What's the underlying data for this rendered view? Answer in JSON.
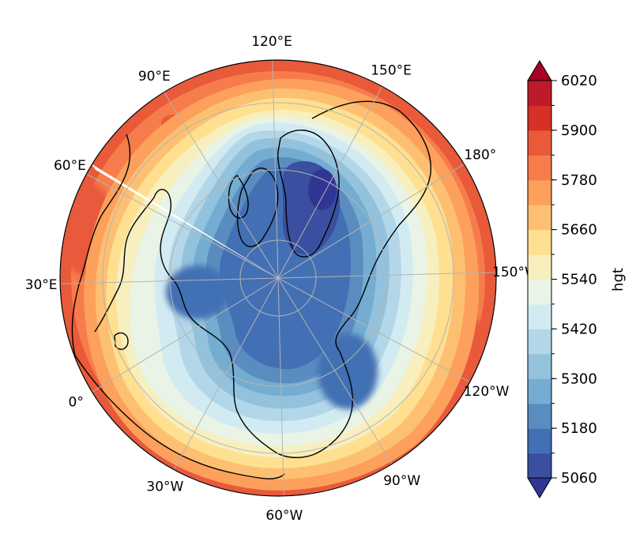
{
  "map": {
    "projection": "north-polar-stereographic",
    "field_label": "hgt",
    "colormap": "RdYlBu_r",
    "gridlines": true,
    "longitude_labels": [
      {
        "text": "0°",
        "lon": 0
      },
      {
        "text": "30°E",
        "lon": 30
      },
      {
        "text": "60°E",
        "lon": 60
      },
      {
        "text": "90°E",
        "lon": 90
      },
      {
        "text": "120°E",
        "lon": 120
      },
      {
        "text": "150°E",
        "lon": 150
      },
      {
        "text": "180°",
        "lon": 180
      },
      {
        "text": "150°W",
        "lon": -150
      },
      {
        "text": "120°W",
        "lon": -120
      },
      {
        "text": "90°W",
        "lon": -90
      },
      {
        "text": "60°W",
        "lon": -60
      },
      {
        "text": "30°W",
        "lon": -30
      }
    ],
    "latitude_circles": [
      80,
      60,
      40,
      20
    ]
  },
  "colorbar": {
    "label": "hgt",
    "min": 5060,
    "max": 6020,
    "step": 60,
    "ticks": [
      5060,
      5180,
      5300,
      5420,
      5540,
      5660,
      5780,
      5900,
      6020
    ],
    "extend": "both",
    "under_color": "#313695",
    "over_color": "#a50026",
    "colors": [
      "#3a4f9f",
      "#4370b4",
      "#5a8cc0",
      "#74add1",
      "#93c2dd",
      "#b3d7e8",
      "#d2ebf3",
      "#e9f4e6",
      "#f8efbf",
      "#fee090",
      "#fdc072",
      "#fca05c",
      "#f67d4b",
      "#e85a3a",
      "#d73027",
      "#be1a2a"
    ]
  }
}
